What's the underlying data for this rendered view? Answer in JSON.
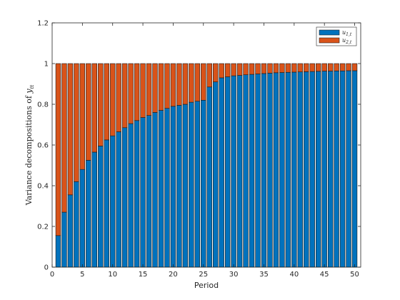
{
  "chart_data": {
    "type": "bar",
    "stacked": true,
    "xlabel": "Period",
    "ylabel": "Variance decompositions of y",
    "ylabel_main": "Variance decompositions of ",
    "ylabel_var": "y",
    "ylabel_sub": "tt",
    "xlim": [
      0,
      51
    ],
    "ylim": [
      0,
      1.2
    ],
    "xticks": [
      0,
      5,
      10,
      15,
      20,
      25,
      30,
      35,
      40,
      45,
      50
    ],
    "yticks": [
      0,
      0.2,
      0.4,
      0.6,
      0.8,
      1,
      1.2
    ],
    "grid": false,
    "legend_position": "top-right",
    "x": [
      1,
      2,
      3,
      4,
      5,
      6,
      7,
      8,
      9,
      10,
      11,
      12,
      13,
      14,
      15,
      16,
      17,
      18,
      19,
      20,
      21,
      22,
      23,
      24,
      25,
      26,
      27,
      28,
      29,
      30,
      31,
      32,
      33,
      34,
      35,
      36,
      37,
      38,
      39,
      40,
      41,
      42,
      43,
      44,
      45,
      46,
      47,
      48,
      49,
      50
    ],
    "series": [
      {
        "name": "u1,t",
        "legend_main": "u",
        "legend_sub": "1,t",
        "color": "#0072BD",
        "values": [
          0.155,
          0.27,
          0.355,
          0.42,
          0.48,
          0.525,
          0.565,
          0.595,
          0.625,
          0.645,
          0.665,
          0.685,
          0.705,
          0.72,
          0.735,
          0.745,
          0.76,
          0.77,
          0.78,
          0.79,
          0.795,
          0.8,
          0.81,
          0.815,
          0.82,
          0.885,
          0.91,
          0.93,
          0.935,
          0.94,
          0.942,
          0.945,
          0.947,
          0.949,
          0.951,
          0.953,
          0.955,
          0.956,
          0.957,
          0.958,
          0.959,
          0.96,
          0.961,
          0.962,
          0.963,
          0.963,
          0.964,
          0.964,
          0.965,
          0.965
        ]
      },
      {
        "name": "u2,t",
        "legend_main": "u",
        "legend_sub": "2,t",
        "color": "#D95319",
        "values": [
          0.845,
          0.73,
          0.645,
          0.58,
          0.52,
          0.475,
          0.435,
          0.405,
          0.375,
          0.355,
          0.335,
          0.315,
          0.295,
          0.28,
          0.265,
          0.255,
          0.24,
          0.23,
          0.22,
          0.21,
          0.205,
          0.2,
          0.19,
          0.185,
          0.18,
          0.115,
          0.09,
          0.07,
          0.065,
          0.06,
          0.058,
          0.055,
          0.053,
          0.051,
          0.049,
          0.047,
          0.045,
          0.044,
          0.043,
          0.042,
          0.041,
          0.04,
          0.039,
          0.038,
          0.037,
          0.037,
          0.036,
          0.036,
          0.035,
          0.035
        ]
      }
    ]
  }
}
